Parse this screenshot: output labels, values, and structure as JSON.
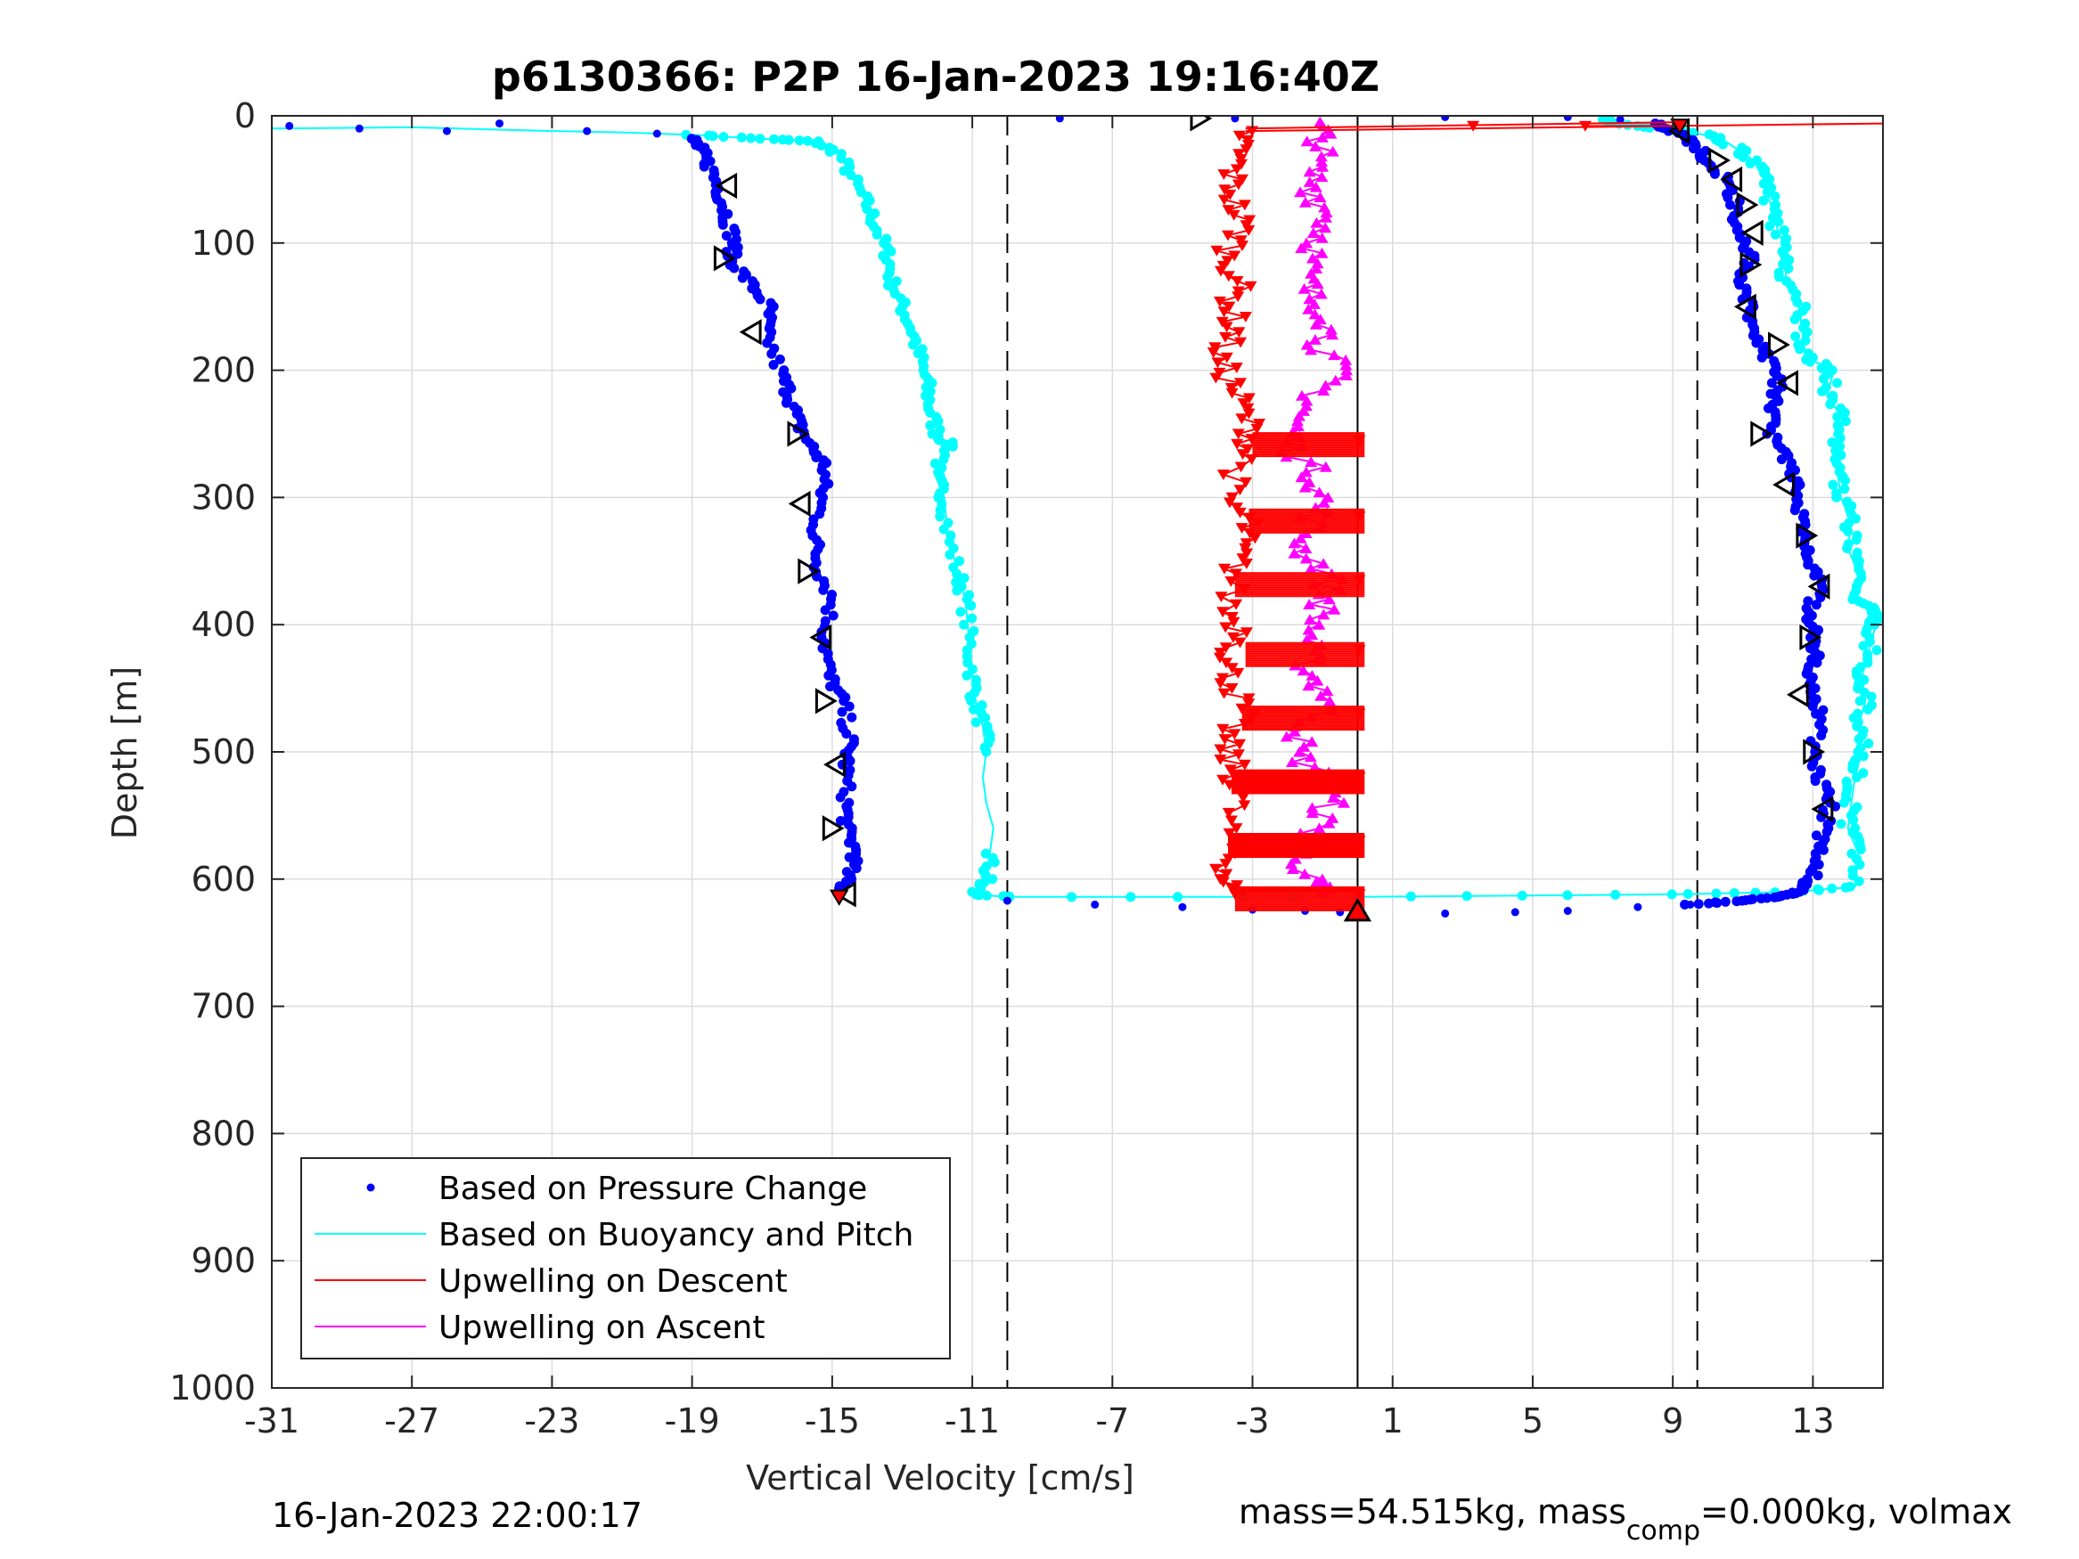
{
  "chart_data": {
    "type": "scatter",
    "title": "p6130366: P2P 16-Jan-2023 19:16:40Z",
    "xlabel": "Vertical Velocity [cm/s]",
    "ylabel": "Depth [m]",
    "xlim": [
      -31,
      15
    ],
    "ylim": [
      0,
      1000
    ],
    "y_reversed": true,
    "grid": true,
    "xticks": [
      "-31",
      "-27",
      "-23",
      "-19",
      "-15",
      "-11",
      "-7",
      "-3",
      "1",
      "5",
      "9",
      "13"
    ],
    "yticks": [
      "0",
      "100",
      "200",
      "300",
      "400",
      "500",
      "600",
      "700",
      "800",
      "900",
      "1000"
    ],
    "legend": {
      "placement": "bottom-left",
      "entries": [
        {
          "label": "Based on Pressure Change",
          "color": "#0000ff",
          "marker": "dot"
        },
        {
          "label": "Based on Buoyancy and Pitch",
          "color": "#00ffff",
          "marker": "line"
        },
        {
          "label": "Upwelling on Descent",
          "color": "#ff0000",
          "marker": "line"
        },
        {
          "label": "Upwelling on Ascent",
          "color": "#ff00ff",
          "marker": "line"
        }
      ]
    },
    "reference_lines": {
      "dashed_x": [
        -10,
        9.7
      ],
      "solid_x": [
        0
      ]
    },
    "series": [
      {
        "name": "Based on Pressure Change",
        "color": "#0000ff",
        "profile": [
          [
            -30.5,
            8
          ],
          [
            -28.5,
            10
          ],
          [
            -26,
            12
          ],
          [
            -24.5,
            6
          ],
          [
            -22,
            12
          ],
          [
            -20,
            14
          ],
          [
            -19,
            18
          ],
          [
            -18.8,
            25
          ],
          [
            -18.5,
            40
          ],
          [
            -18.2,
            60
          ],
          [
            -18,
            80
          ],
          [
            -17.8,
            100
          ],
          [
            -17.9,
            112
          ],
          [
            -17.4,
            130
          ],
          [
            -16.8,
            150
          ],
          [
            -16.9,
            170
          ],
          [
            -16.5,
            200
          ],
          [
            -16.2,
            220
          ],
          [
            -16,
            240
          ],
          [
            -15.6,
            260
          ],
          [
            -15.2,
            275
          ],
          [
            -15.3,
            300
          ],
          [
            -15.5,
            330
          ],
          [
            -15.4,
            355
          ],
          [
            -15,
            380
          ],
          [
            -15.2,
            410
          ],
          [
            -15.1,
            440
          ],
          [
            -14.7,
            460
          ],
          [
            -14.5,
            490
          ],
          [
            -14.6,
            510
          ],
          [
            -14.6,
            540
          ],
          [
            -14.6,
            560
          ],
          [
            -14.3,
            580
          ],
          [
            -14.6,
            600
          ],
          [
            -14.8,
            613
          ]
        ],
        "profile_ascent": [
          [
            -10,
            617
          ],
          [
            -7.5,
            620
          ],
          [
            -5,
            622
          ],
          [
            -3,
            624
          ],
          [
            -1.5,
            625
          ],
          [
            -0.5,
            626
          ],
          [
            2.5,
            627
          ],
          [
            4.5,
            626
          ],
          [
            6,
            625
          ],
          [
            8,
            622
          ],
          [
            9.5,
            620
          ],
          [
            11,
            617
          ],
          [
            12,
            614
          ],
          [
            12.5,
            610
          ],
          [
            13,
            600
          ],
          [
            13.2,
            580
          ],
          [
            13.3,
            560
          ],
          [
            13.5,
            540
          ],
          [
            13.2,
            520
          ],
          [
            13,
            500
          ],
          [
            13.2,
            470
          ],
          [
            12.9,
            450
          ],
          [
            13,
            430
          ],
          [
            13.1,
            410
          ],
          [
            12.9,
            390
          ],
          [
            13.2,
            370
          ],
          [
            13,
            350
          ],
          [
            12.8,
            330
          ],
          [
            12.6,
            310
          ],
          [
            12.5,
            290
          ],
          [
            12.2,
            270
          ],
          [
            11.8,
            250
          ],
          [
            11.9,
            230
          ],
          [
            12,
            210
          ],
          [
            11.7,
            190
          ],
          [
            11.4,
            170
          ],
          [
            11.2,
            150
          ],
          [
            11,
            130
          ],
          [
            11.2,
            110
          ],
          [
            10.9,
            90
          ],
          [
            10.8,
            70
          ],
          [
            10.5,
            50
          ],
          [
            10,
            35
          ],
          [
            9.6,
            22
          ],
          [
            9,
            12
          ],
          [
            8.5,
            6
          ],
          [
            7.5,
            3
          ],
          [
            6,
            1
          ],
          [
            2.5,
            1
          ],
          [
            -8.5,
            2
          ],
          [
            -3.5,
            2
          ]
        ]
      },
      {
        "name": "Based on Buoyancy and Pitch",
        "color": "#00ffff",
        "profile": [
          [
            -31,
            10
          ],
          [
            -27,
            9
          ],
          [
            -23,
            12
          ],
          [
            -21,
            13
          ],
          [
            -19,
            15
          ],
          [
            -17,
            18
          ],
          [
            -15.5,
            20
          ],
          [
            -14.8,
            30
          ],
          [
            -14.4,
            50
          ],
          [
            -14,
            70
          ],
          [
            -13.7,
            90
          ],
          [
            -13.4,
            110
          ],
          [
            -13.3,
            130
          ],
          [
            -13,
            150
          ],
          [
            -12.7,
            170
          ],
          [
            -12.5,
            190
          ],
          [
            -12.3,
            210
          ],
          [
            -12.2,
            230
          ],
          [
            -12,
            250
          ],
          [
            -11.6,
            260
          ],
          [
            -12.1,
            280
          ],
          [
            -11.8,
            300
          ],
          [
            -11.7,
            330
          ],
          [
            -11.4,
            360
          ],
          [
            -11.2,
            380
          ],
          [
            -11.1,
            410
          ],
          [
            -11,
            440
          ],
          [
            -10.9,
            460
          ],
          [
            -10.7,
            480
          ],
          [
            -10.6,
            500
          ],
          [
            -10.7,
            520
          ],
          [
            -10.6,
            540
          ],
          [
            -10.4,
            560
          ],
          [
            -10.5,
            580
          ],
          [
            -10.6,
            600
          ],
          [
            -11,
            612
          ],
          [
            -10,
            614
          ],
          [
            0,
            614
          ],
          [
            9,
            612
          ],
          [
            12.5,
            610
          ],
          [
            14.2,
            606
          ],
          [
            14.3,
            580
          ],
          [
            14,
            560
          ],
          [
            14.1,
            540
          ],
          [
            14.2,
            520
          ],
          [
            14.4,
            500
          ],
          [
            14.3,
            480
          ],
          [
            14.5,
            460
          ],
          [
            14.4,
            440
          ],
          [
            14.6,
            420
          ],
          [
            14.8,
            400
          ],
          [
            14.7,
            390
          ],
          [
            14.2,
            380
          ],
          [
            14.3,
            360
          ],
          [
            14,
            340
          ],
          [
            14.1,
            320
          ],
          [
            13.8,
            300
          ],
          [
            13.7,
            280
          ],
          [
            13.6,
            260
          ],
          [
            13.9,
            240
          ],
          [
            13.4,
            220
          ],
          [
            13.6,
            200
          ],
          [
            12.8,
            190
          ],
          [
            12.7,
            170
          ],
          [
            12.6,
            150
          ],
          [
            12.2,
            130
          ],
          [
            12.3,
            110
          ],
          [
            12,
            90
          ],
          [
            11.8,
            70
          ],
          [
            11.6,
            50
          ],
          [
            11.3,
            35
          ],
          [
            10.5,
            20
          ],
          [
            9.5,
            12
          ],
          [
            8,
            8
          ],
          [
            7,
            3
          ]
        ]
      },
      {
        "name": "Upwelling on Descent",
        "color": "#ff0000",
        "profile": [
          [
            -3.2,
            12
          ],
          [
            -3.4,
            30
          ],
          [
            -3.6,
            50
          ],
          [
            -3.5,
            70
          ],
          [
            -3.3,
            90
          ],
          [
            -3.7,
            110
          ],
          [
            -3.4,
            130
          ],
          [
            -3.6,
            150
          ],
          [
            -3.5,
            170
          ],
          [
            -4,
            190
          ],
          [
            -3.6,
            210
          ],
          [
            -3.3,
            230
          ],
          [
            -3,
            250
          ],
          [
            -3.2,
            270
          ],
          [
            -3.8,
            300
          ],
          [
            -3.1,
            320
          ],
          [
            -3.4,
            340
          ],
          [
            -3.5,
            360
          ],
          [
            -3.7,
            390
          ],
          [
            -3.2,
            410
          ],
          [
            -3.8,
            430
          ],
          [
            -3.5,
            450
          ],
          [
            -3.3,
            470
          ],
          [
            -3.8,
            490
          ],
          [
            -3.6,
            510
          ],
          [
            -3.4,
            530
          ],
          [
            -3.7,
            560
          ],
          [
            -3.5,
            580
          ],
          [
            -3.8,
            600
          ],
          [
            -3.5,
            612
          ]
        ],
        "bands_y": [
          255,
          315,
          365,
          420,
          470,
          520,
          570,
          612
        ],
        "band_right_x": 0.2,
        "top_segments": [
          [
            [
              -3.2,
              10
            ],
            [
              9.2,
              5
            ]
          ],
          [
            [
              -3.2,
              12
            ],
            [
              15,
              6
            ]
          ],
          [
            [
              6.5,
              8
            ],
            [
              9.3,
              8
            ]
          ]
        ]
      },
      {
        "name": "Upwelling on Ascent",
        "color": "#ff00ff",
        "profile": [
          [
            -1.2,
            5
          ],
          [
            -1,
            20
          ],
          [
            -1.3,
            40
          ],
          [
            -1.2,
            60
          ],
          [
            -0.8,
            80
          ],
          [
            -1.1,
            100
          ],
          [
            -1.5,
            120
          ],
          [
            -1.4,
            140
          ],
          [
            -0.7,
            160
          ],
          [
            -1,
            180
          ],
          [
            -0.6,
            200
          ],
          [
            -1.2,
            220
          ],
          [
            -1.8,
            240
          ],
          [
            -1.9,
            260
          ],
          [
            -1.2,
            280
          ],
          [
            -1,
            300
          ],
          [
            -1.3,
            320
          ],
          [
            -1.6,
            340
          ],
          [
            -0.8,
            360
          ],
          [
            -0.9,
            380
          ],
          [
            -1.2,
            400
          ],
          [
            -1.5,
            420
          ],
          [
            -1.3,
            440
          ],
          [
            -0.7,
            460
          ],
          [
            -1.5,
            480
          ],
          [
            -1.8,
            500
          ],
          [
            -1,
            520
          ],
          [
            -0.8,
            540
          ],
          [
            -1.2,
            560
          ],
          [
            -1.6,
            580
          ],
          [
            -1.4,
            600
          ],
          [
            -1,
            610
          ]
        ]
      }
    ],
    "markers": {
      "open_triangles_left": [
        [
          -18,
          55
        ],
        [
          -18.1,
          112
        ],
        [
          -17.3,
          170
        ],
        [
          -16,
          250
        ],
        [
          -15.9,
          305
        ],
        [
          -15.7,
          358
        ],
        [
          -15.3,
          410
        ],
        [
          -15.2,
          460
        ],
        [
          -14.9,
          510
        ],
        [
          -15,
          560
        ],
        [
          -14.6,
          612
        ],
        [
          -4.5,
          2
        ],
        [
          9.2,
          12
        ],
        [
          10.3,
          35
        ],
        [
          10.7,
          50
        ],
        [
          11.1,
          70
        ],
        [
          11.3,
          92
        ],
        [
          11.2,
          117
        ],
        [
          11.1,
          150
        ],
        [
          12,
          180
        ],
        [
          12.3,
          210
        ],
        [
          11.5,
          250
        ],
        [
          12.2,
          290
        ],
        [
          12.8,
          330
        ],
        [
          13.2,
          370
        ],
        [
          12.9,
          410
        ],
        [
          12.6,
          455
        ],
        [
          13,
          500
        ],
        [
          13.3,
          545
        ]
      ],
      "filled_red_triangles": [
        [
          -14.8,
          614
        ],
        [
          9.2,
          8
        ]
      ],
      "red_triangle_outlined": [
        [
          0,
          625
        ]
      ]
    }
  },
  "footer": {
    "left": "16-Jan-2023 22:00:17",
    "right_prefix": "mass=54.515kg, mass",
    "right_sub": "comp",
    "right_suffix": "=0.000kg, volmax"
  }
}
